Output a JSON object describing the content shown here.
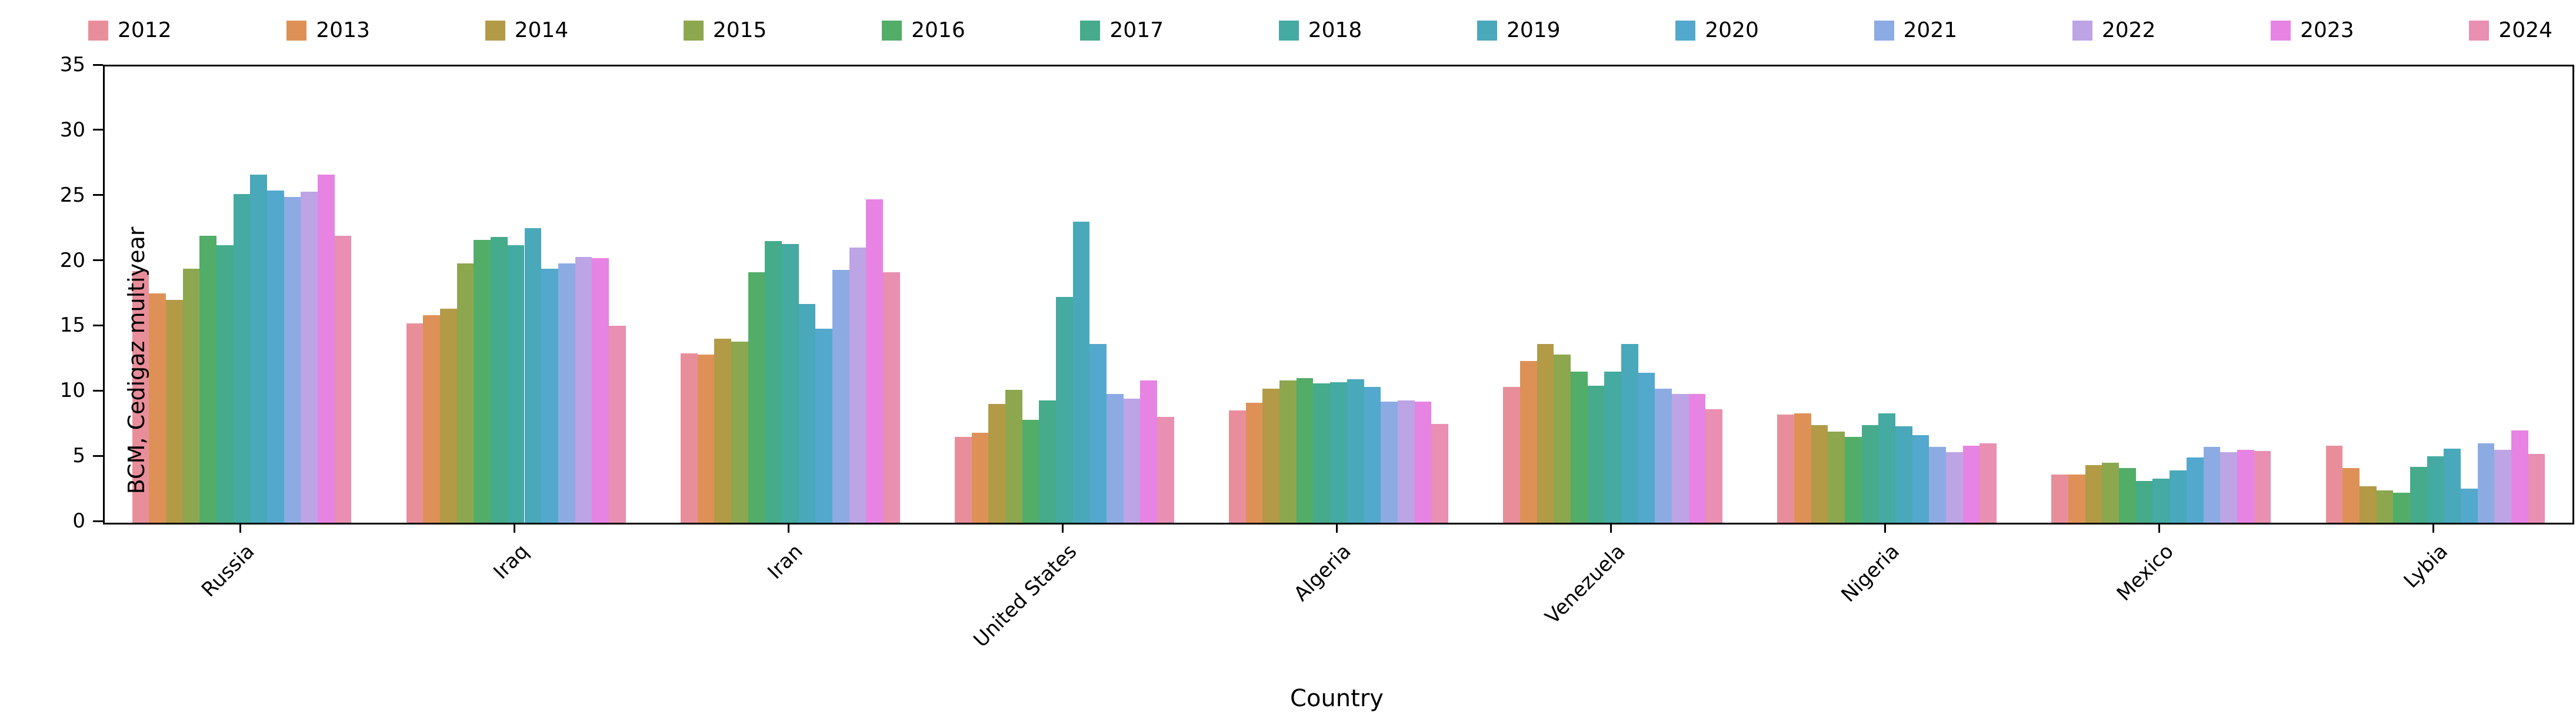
{
  "figure": {
    "background": "#ffffff",
    "spine_color": "#000000"
  },
  "chart_data": {
    "type": "bar",
    "title": "",
    "xlabel": "Country",
    "ylabel": "BCM, Cedigaz multiyear",
    "ylim": [
      0,
      35
    ],
    "yticks": [
      0,
      5,
      10,
      15,
      20,
      25,
      30,
      35
    ],
    "grid": false,
    "legend_position": "top-horizontal",
    "bar_group_fraction": 0.8,
    "categories": [
      "Russia",
      "Iraq",
      "Iran",
      "United States",
      "Algeria",
      "Venezuela",
      "Nigeria",
      "Mexico",
      "Lybia"
    ],
    "series": [
      {
        "name": "2012",
        "color": "#e88e9b",
        "values": [
          19.3,
          15.3,
          13.0,
          6.6,
          8.6,
          10.4,
          8.3,
          3.7,
          5.9
        ]
      },
      {
        "name": "2013",
        "color": "#dd9157",
        "values": [
          17.6,
          15.9,
          12.9,
          6.9,
          9.2,
          12.4,
          8.4,
          3.7,
          4.2
        ]
      },
      {
        "name": "2014",
        "color": "#b29a47",
        "values": [
          17.1,
          16.4,
          14.1,
          9.1,
          10.3,
          13.7,
          7.5,
          4.4,
          2.8
        ]
      },
      {
        "name": "2015",
        "color": "#8ca74e",
        "values": [
          19.5,
          19.9,
          13.9,
          10.2,
          10.9,
          12.9,
          7.0,
          4.6,
          2.5
        ]
      },
      {
        "name": "2016",
        "color": "#52ad68",
        "values": [
          22.0,
          21.7,
          19.2,
          7.9,
          11.1,
          11.6,
          6.6,
          4.2,
          2.3
        ]
      },
      {
        "name": "2017",
        "color": "#45ab8a",
        "values": [
          21.3,
          21.9,
          21.6,
          9.4,
          10.7,
          10.5,
          7.5,
          3.2,
          4.3
        ]
      },
      {
        "name": "2018",
        "color": "#44aaa2",
        "values": [
          25.2,
          21.3,
          21.4,
          17.3,
          10.8,
          11.6,
          8.4,
          3.4,
          5.1
        ]
      },
      {
        "name": "2019",
        "color": "#49a8ba",
        "values": [
          26.7,
          22.6,
          16.8,
          23.1,
          11.0,
          13.7,
          7.4,
          4.0,
          5.7
        ]
      },
      {
        "name": "2020",
        "color": "#53a8cd",
        "values": [
          25.5,
          19.5,
          14.9,
          13.7,
          10.4,
          11.5,
          6.7,
          5.0,
          2.6
        ]
      },
      {
        "name": "2021",
        "color": "#8cabe3",
        "values": [
          25.0,
          19.9,
          19.4,
          9.9,
          9.3,
          10.3,
          5.8,
          5.8,
          6.1
        ]
      },
      {
        "name": "2022",
        "color": "#bca4e5",
        "values": [
          25.4,
          20.4,
          21.1,
          9.5,
          9.4,
          9.9,
          5.4,
          5.4,
          5.6
        ]
      },
      {
        "name": "2023",
        "color": "#e783e2",
        "values": [
          26.7,
          20.3,
          24.8,
          10.9,
          9.3,
          9.9,
          5.9,
          5.6,
          7.1
        ]
      },
      {
        "name": "2024",
        "color": "#e88fb2",
        "values": [
          22.0,
          15.1,
          19.2,
          8.1,
          7.6,
          8.7,
          6.1,
          5.5,
          5.3
        ]
      }
    ]
  }
}
